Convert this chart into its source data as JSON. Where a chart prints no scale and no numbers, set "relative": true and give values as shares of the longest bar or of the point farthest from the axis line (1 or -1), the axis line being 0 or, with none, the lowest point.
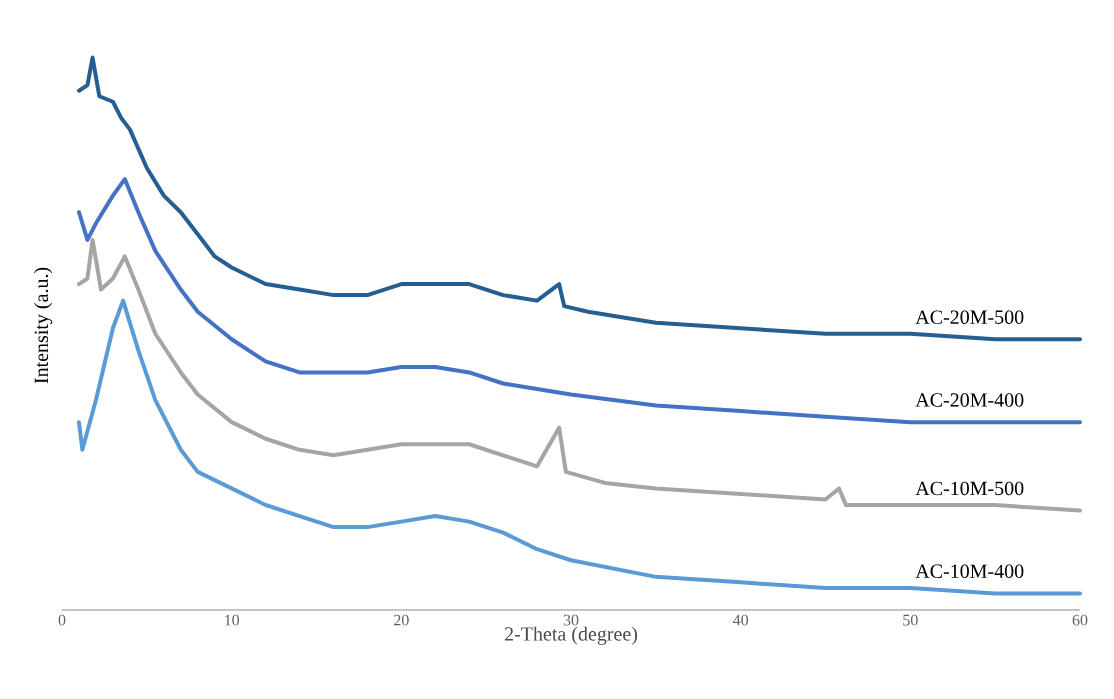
{
  "chart_data": {
    "type": "line",
    "relative": true,
    "xlabel": "2-Theta (degree)",
    "ylabel": "Intensity (a.u.)",
    "xlim": [
      0,
      60
    ],
    "xticks": [
      0,
      10,
      20,
      30,
      40,
      50,
      60
    ],
    "series": [
      {
        "name": "AC-20M-500",
        "color": "#255e91",
        "x": [
          1,
          1.5,
          1.8,
          2.2,
          3,
          3.5,
          4,
          5,
          6,
          7,
          8,
          9,
          10,
          12,
          14,
          16,
          18,
          20,
          22,
          24,
          26,
          28,
          29.3,
          29.6,
          31,
          33,
          35,
          40,
          45,
          50,
          55,
          60
        ],
        "values": [
          0.94,
          0.95,
          1.0,
          0.93,
          0.92,
          0.89,
          0.87,
          0.8,
          0.75,
          0.72,
          0.68,
          0.64,
          0.62,
          0.59,
          0.58,
          0.57,
          0.57,
          0.59,
          0.59,
          0.59,
          0.57,
          0.56,
          0.59,
          0.55,
          0.54,
          0.53,
          0.52,
          0.51,
          0.5,
          0.5,
          0.49,
          0.49
        ]
      },
      {
        "name": "AC-20M-400",
        "color": "#4472c4",
        "x": [
          1,
          1.5,
          2,
          3,
          3.7,
          4.5,
          5.5,
          7,
          8,
          10,
          12,
          14,
          16,
          18,
          20,
          22,
          24,
          26,
          28,
          30,
          35,
          40,
          45,
          50,
          55,
          60
        ],
        "values": [
          0.72,
          0.67,
          0.7,
          0.75,
          0.78,
          0.72,
          0.65,
          0.58,
          0.54,
          0.49,
          0.45,
          0.43,
          0.43,
          0.43,
          0.44,
          0.44,
          0.43,
          0.41,
          0.4,
          0.39,
          0.37,
          0.36,
          0.35,
          0.34,
          0.34,
          0.34
        ]
      },
      {
        "name": "AC-10M-500",
        "color": "#a5a5a5",
        "x": [
          1,
          1.5,
          1.8,
          2.3,
          3,
          3.7,
          4.5,
          5.5,
          7,
          8,
          10,
          12,
          14,
          16,
          18,
          20,
          22,
          24,
          26,
          28,
          29.3,
          29.7,
          32,
          35,
          40,
          45,
          45.8,
          46.2,
          50,
          55,
          60
        ],
        "values": [
          0.59,
          0.6,
          0.67,
          0.58,
          0.6,
          0.64,
          0.58,
          0.5,
          0.43,
          0.39,
          0.34,
          0.31,
          0.29,
          0.28,
          0.29,
          0.3,
          0.3,
          0.3,
          0.28,
          0.26,
          0.33,
          0.25,
          0.23,
          0.22,
          0.21,
          0.2,
          0.22,
          0.19,
          0.19,
          0.19,
          0.18
        ]
      },
      {
        "name": "AC-10M-400",
        "color": "#5b9bd5",
        "x": [
          1,
          1.2,
          2,
          3,
          3.6,
          4.5,
          5.5,
          7,
          8,
          10,
          12,
          14,
          16,
          18,
          20,
          22,
          24,
          26,
          28,
          30,
          35,
          40,
          45,
          50,
          55,
          60
        ],
        "values": [
          0.34,
          0.29,
          0.38,
          0.51,
          0.56,
          0.47,
          0.38,
          0.29,
          0.25,
          0.22,
          0.19,
          0.17,
          0.15,
          0.15,
          0.16,
          0.17,
          0.16,
          0.14,
          0.11,
          0.09,
          0.06,
          0.05,
          0.04,
          0.04,
          0.03,
          0.03
        ]
      }
    ]
  }
}
